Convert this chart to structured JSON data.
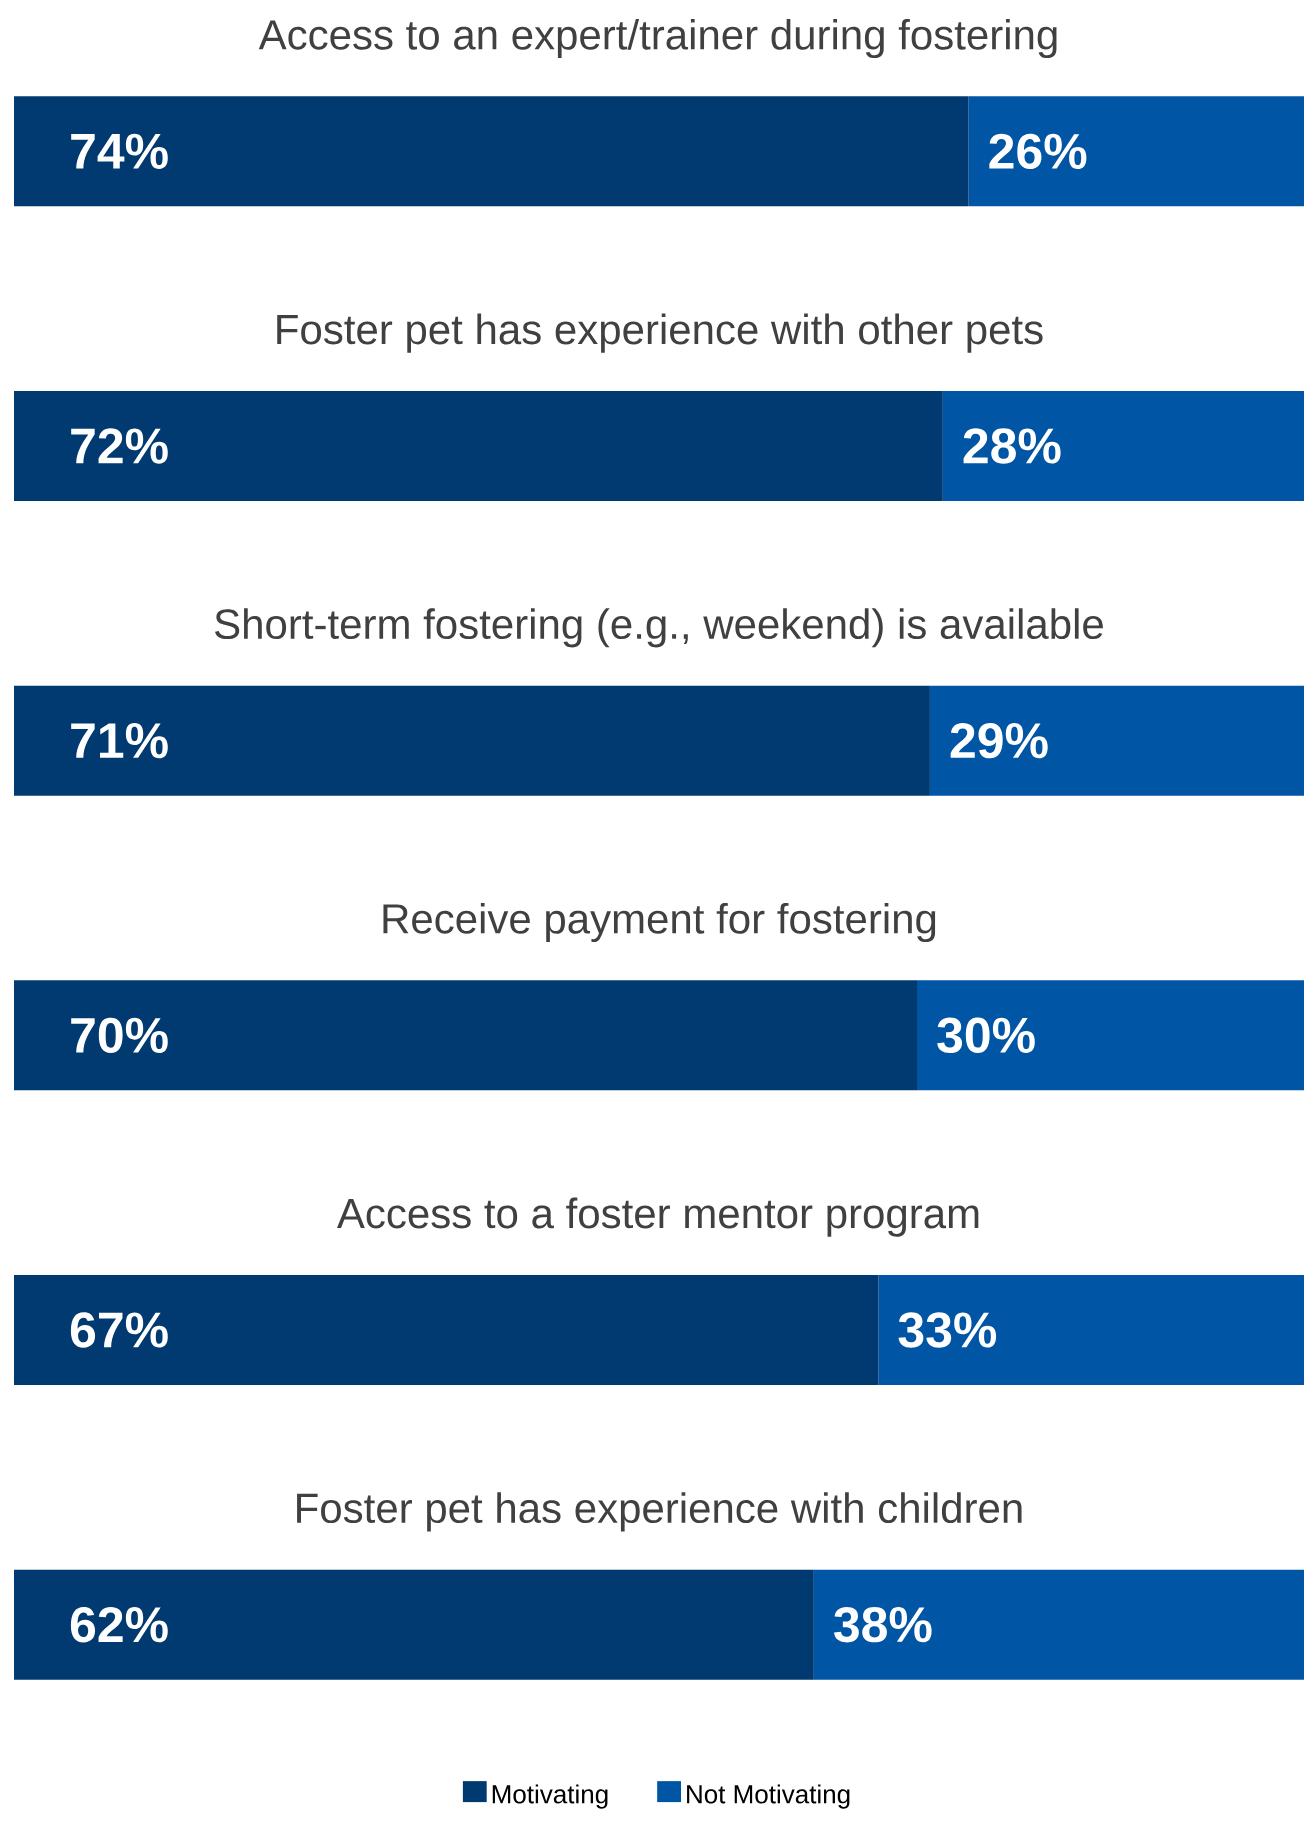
{
  "chart_data": {
    "type": "bar",
    "orientation": "horizontal",
    "stacked": true,
    "legend": "bottom",
    "categories": [
      "Access to an expert/trainer during fostering",
      "Foster pet has experience with other pets",
      "Short-term fostering (e.g., weekend) is available",
      "Receive payment for fostering",
      "Access to a foster mentor program",
      "Foster pet has experience with children"
    ],
    "series": [
      {
        "name": "Motivating",
        "color": "#003a70",
        "values": [
          74,
          72,
          71,
          70,
          67,
          62
        ],
        "value_labels": [
          "74%",
          "72%",
          "71%",
          "70%",
          "67%",
          "62%"
        ]
      },
      {
        "name": "Not Motivating",
        "color": "#0055a4",
        "values": [
          26,
          28,
          29,
          30,
          33,
          38
        ],
        "value_labels": [
          "26%",
          "28%",
          "29%",
          "30%",
          "33%",
          "38%"
        ]
      }
    ]
  }
}
